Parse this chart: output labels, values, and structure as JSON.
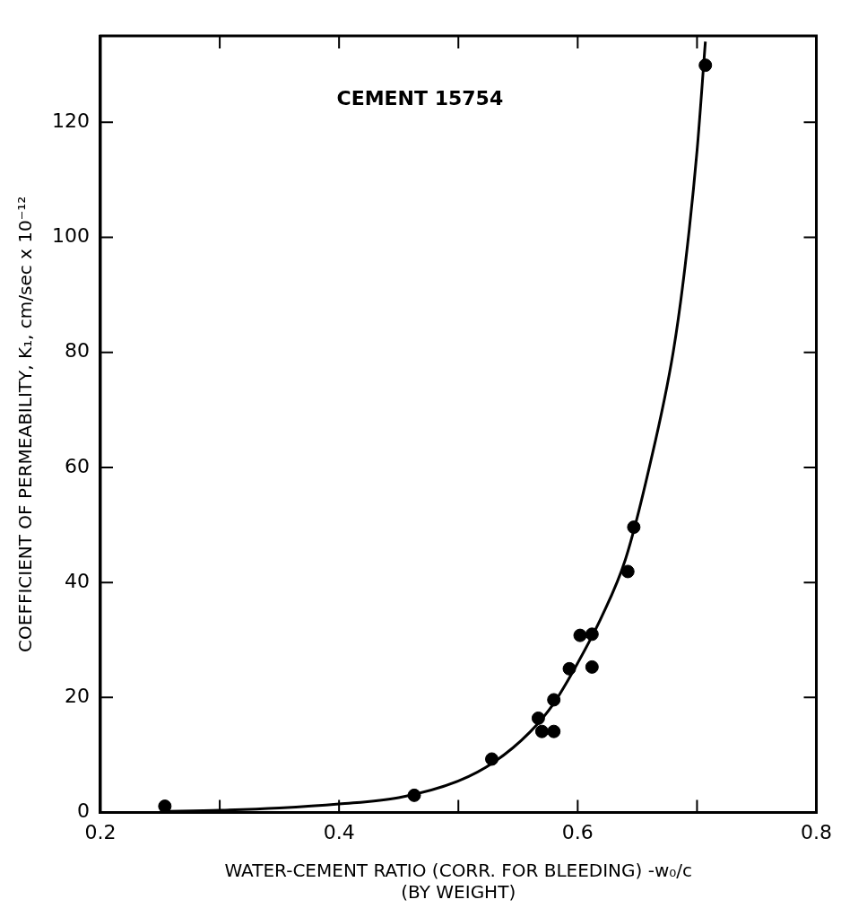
{
  "chart_data": {
    "type": "scatter",
    "xlabel": "WATER-CEMENT RATIO (CORR. FOR BLEEDING) -w₀/c\n(BY WEIGHT)",
    "ylabel": "COEFFICIENT OF PERMEABILITY, K₁, cm/sec x 10⁻¹²",
    "annotations": [
      "CEMENT 15754"
    ],
    "series": [
      {
        "color": "#000000",
        "marker": "circle",
        "x": [
          0.254,
          0.463,
          0.528,
          0.567,
          0.57,
          0.58,
          0.58,
          0.593,
          0.602,
          0.612,
          0.612,
          0.642,
          0.647,
          0.707
        ],
        "values": [
          1.1,
          3.0,
          9.3,
          16.4,
          14.1,
          14.1,
          19.6,
          25,
          30.8,
          31,
          25.3,
          41.9,
          49.6,
          129.9
        ]
      },
      {
        "type": "line",
        "color": "#000000",
        "marker": "none",
        "line_style": "solid",
        "x": [
          0.25,
          0.3,
          0.35,
          0.4,
          0.45,
          0.5,
          0.53,
          0.56,
          0.58,
          0.6,
          0.62,
          0.64,
          0.66,
          0.68,
          0.69,
          0.7,
          0.707
        ],
        "values": [
          0.2,
          0.4,
          0.8,
          1.5,
          2.6,
          5.5,
          8.8,
          14,
          19,
          26,
          34,
          44,
          60,
          80,
          95,
          115,
          134
        ]
      }
    ],
    "xlim": [
      0.2,
      0.8
    ],
    "xticks": [
      0.2,
      {
        "value": 0.3,
        "label": null
      },
      0.4,
      {
        "value": 0.5,
        "label": null
      },
      0.6,
      {
        "value": 0.7,
        "label": null
      },
      0.8
    ],
    "ylim": [
      0,
      135
    ],
    "yticks": [
      0,
      20,
      40,
      60,
      80,
      100,
      120
    ],
    "grid": false,
    "legend": false
  }
}
